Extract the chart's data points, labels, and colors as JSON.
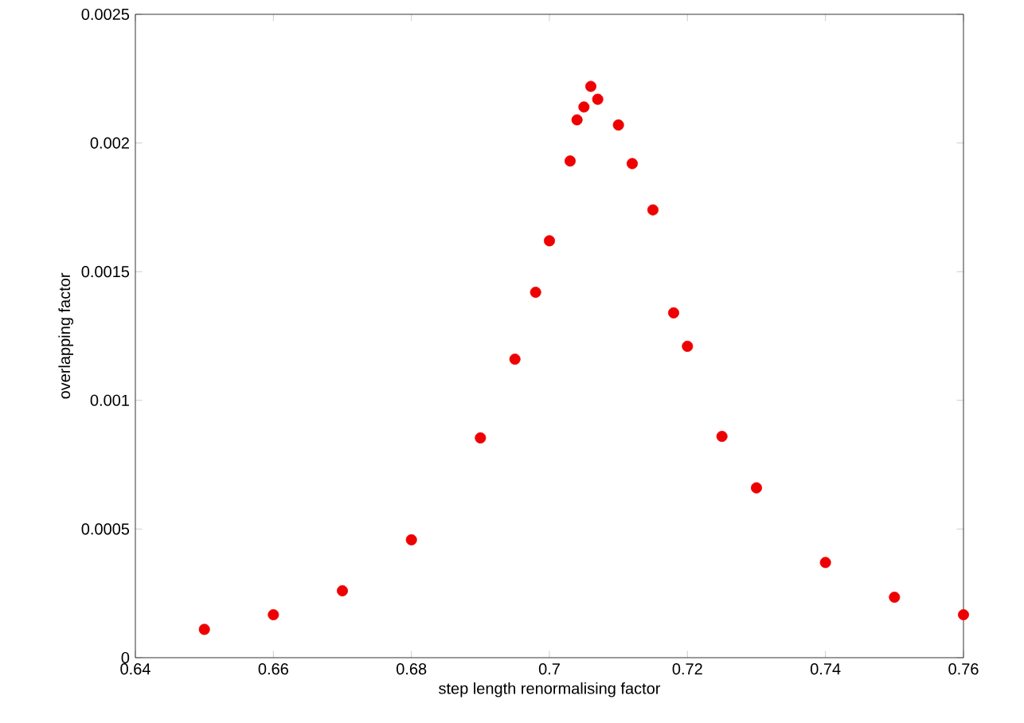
{
  "chart_data": {
    "type": "scatter",
    "xlabel": "step length renormalising factor",
    "ylabel": "overlapping factor",
    "x": [
      0.65,
      0.66,
      0.67,
      0.68,
      0.69,
      0.695,
      0.698,
      0.7,
      0.703,
      0.704,
      0.705,
      0.706,
      0.707,
      0.71,
      0.712,
      0.715,
      0.718,
      0.72,
      0.725,
      0.73,
      0.74,
      0.75,
      0.76
    ],
    "series": [
      {
        "color": "#ee0000",
        "values": [
          0.00011,
          0.000167,
          0.00026,
          0.000458,
          0.000854,
          0.00116,
          0.00142,
          0.00162,
          0.00193,
          0.00209,
          0.00214,
          0.00222,
          0.00217,
          0.00207,
          0.00192,
          0.00174,
          0.00134,
          0.00121,
          0.00086,
          0.00066,
          0.00037,
          0.000235,
          0.000167
        ]
      }
    ],
    "xlim": [
      0.64,
      0.76
    ],
    "ylim": [
      0,
      0.0025
    ],
    "xticks": [
      0.64,
      0.66,
      0.68,
      0.7,
      0.72,
      0.74,
      0.76
    ],
    "yticks": [
      0,
      0.0005,
      0.001,
      0.0015,
      0.002,
      0.0025
    ],
    "marker": "circle",
    "grid": false
  }
}
